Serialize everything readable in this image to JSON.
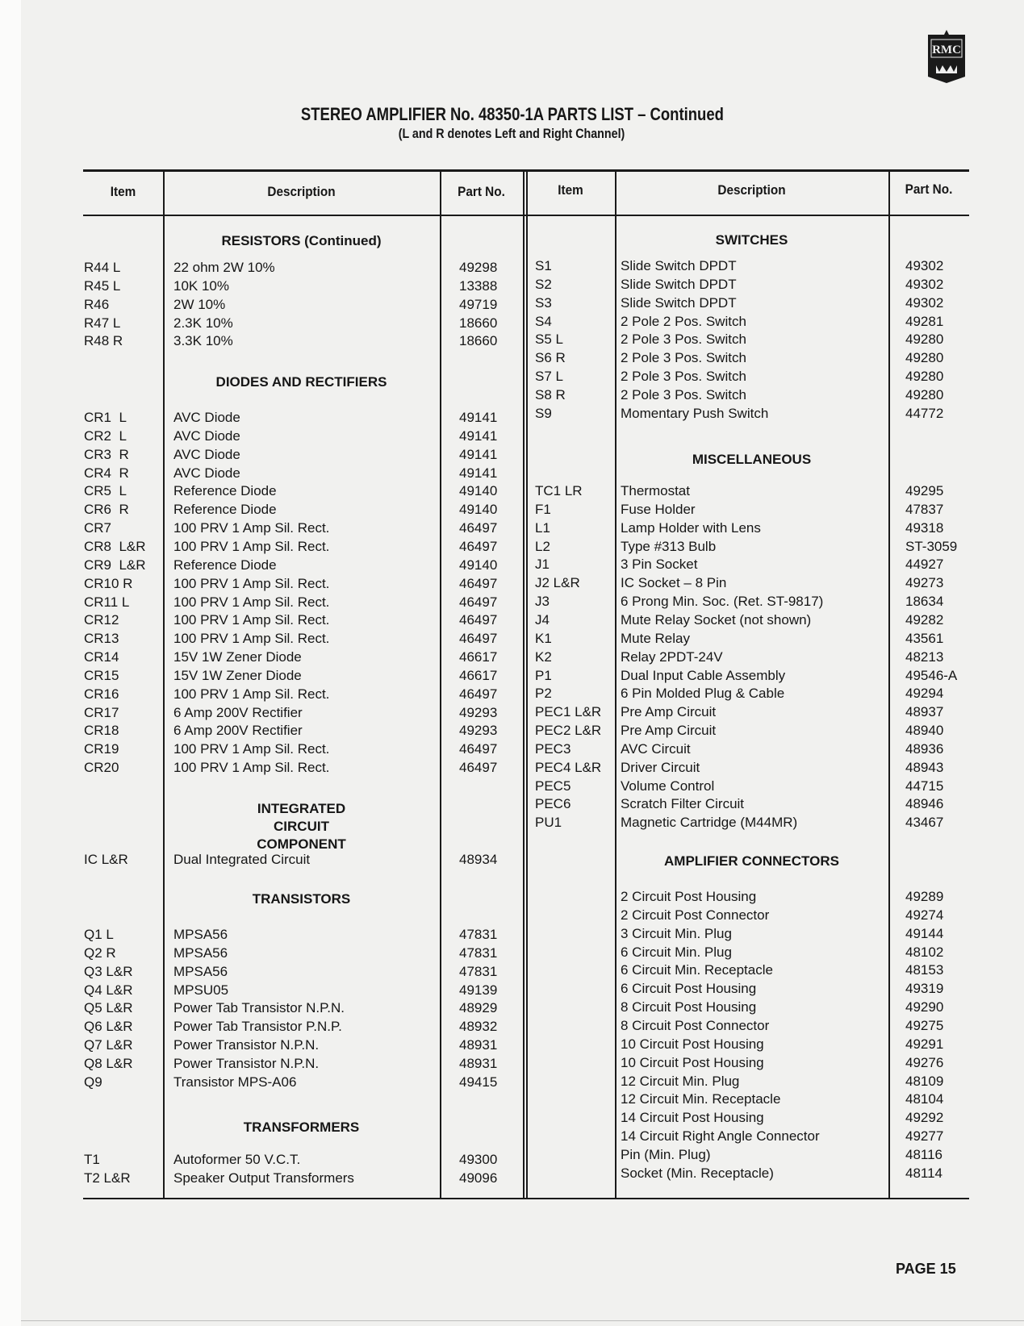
{
  "logo": {
    "text": "RMC",
    "icon": "rmc-crest-logo"
  },
  "title": "STEREO AMPLIFIER No. 48350-1A PARTS LIST – Continued",
  "subtitle": "(L and R denotes Left and Right Channel)",
  "headers": {
    "item": "Item",
    "description": "Description",
    "part_no": "Part No."
  },
  "left_sections": [
    {
      "heading": "RESISTORS (Continued)",
      "rows": [
        [
          "R44 L",
          "22 ohm 2W 10%",
          "49298"
        ],
        [
          "R45 L",
          "10K 10%",
          "13388"
        ],
        [
          "R46",
          "2W 10%",
          "49719"
        ],
        [
          "R47 L",
          "2.3K 10%",
          "18660"
        ],
        [
          "R48 R",
          "3.3K 10%",
          "18660"
        ]
      ]
    },
    {
      "heading": "DIODES AND RECTIFIERS",
      "rows": [
        [
          "CR1  L",
          "AVC Diode",
          "49141"
        ],
        [
          "CR2  L",
          "AVC Diode",
          "49141"
        ],
        [
          "CR3  R",
          "AVC Diode",
          "49141"
        ],
        [
          "CR4  R",
          "AVC Diode",
          "49141"
        ],
        [
          "CR5  L",
          "Reference Diode",
          "49140"
        ],
        [
          "CR6  R",
          "Reference Diode",
          "49140"
        ],
        [
          "CR7",
          "100 PRV 1 Amp Sil. Rect.",
          "46497"
        ],
        [
          "CR8  L&R",
          "100 PRV 1 Amp Sil. Rect.",
          "46497"
        ],
        [
          "CR9  L&R",
          "Reference Diode",
          "49140"
        ],
        [
          "CR10 R",
          "100 PRV 1 Amp Sil. Rect.",
          "46497"
        ],
        [
          "CR11 L",
          "100 PRV 1 Amp Sil. Rect.",
          "46497"
        ],
        [
          "CR12",
          "100 PRV 1 Amp Sil. Rect.",
          "46497"
        ],
        [
          "CR13",
          "100 PRV 1 Amp Sil. Rect.",
          "46497"
        ],
        [
          "CR14",
          "15V 1W Zener Diode",
          "46617"
        ],
        [
          "CR15",
          "15V 1W Zener Diode",
          "46617"
        ],
        [
          "CR16",
          "100 PRV 1 Amp Sil. Rect.",
          "46497"
        ],
        [
          "CR17",
          "6 Amp 200V Rectifier",
          "49293"
        ],
        [
          "CR18",
          "6 Amp 200V Rectifier",
          "49293"
        ],
        [
          "CR19",
          "100 PRV 1 Amp Sil. Rect.",
          "46497"
        ],
        [
          "CR20",
          "100 PRV 1 Amp Sil. Rect.",
          "46497"
        ]
      ]
    },
    {
      "heading": "INTEGRATED CIRCUIT COMPONENT",
      "rows": [
        [
          "IC L&R",
          "Dual Integrated Circuit",
          "48934"
        ]
      ]
    },
    {
      "heading": "TRANSISTORS",
      "rows": [
        [
          "Q1 L",
          "MPSA56",
          "47831"
        ],
        [
          "Q2 R",
          "MPSA56",
          "47831"
        ],
        [
          "Q3 L&R",
          "MPSA56",
          "47831"
        ],
        [
          "Q4 L&R",
          "MPSU05",
          "49139"
        ],
        [
          "Q5 L&R",
          "Power Tab Transistor N.P.N.",
          "48929"
        ],
        [
          "Q6 L&R",
          "Power Tab Transistor P.N.P.",
          "48932"
        ],
        [
          "Q7 L&R",
          "Power Transistor N.P.N.",
          "48931"
        ],
        [
          "Q8 L&R",
          "Power Transistor N.P.N.",
          "48931"
        ],
        [
          "Q9",
          "Transistor MPS-A06",
          "49415"
        ]
      ]
    },
    {
      "heading": "TRANSFORMERS",
      "rows": [
        [
          "T1",
          "Autoformer 50 V.C.T.",
          "49300"
        ],
        [
          "T2 L&R",
          "Speaker Output Transformers",
          "49096"
        ]
      ]
    }
  ],
  "right_sections": [
    {
      "heading": "SWITCHES",
      "rows": [
        [
          "S1",
          "Slide Switch DPDT",
          "49302"
        ],
        [
          "S2",
          "Slide Switch DPDT",
          "49302"
        ],
        [
          "S3",
          "Slide Switch DPDT",
          "49302"
        ],
        [
          "S4",
          "2 Pole 2 Pos. Switch",
          "49281"
        ],
        [
          "S5 L",
          "2 Pole 3 Pos. Switch",
          "49280"
        ],
        [
          "S6 R",
          "2 Pole 3 Pos. Switch",
          "49280"
        ],
        [
          "S7 L",
          "2 Pole 3 Pos. Switch",
          "49280"
        ],
        [
          "S8 R",
          "2 Pole 3 Pos. Switch",
          "49280"
        ],
        [
          "S9",
          "Momentary Push Switch",
          "44772"
        ]
      ]
    },
    {
      "heading": "MISCELLANEOUS",
      "rows": [
        [
          "TC1 LR",
          "Thermostat",
          "49295"
        ],
        [
          "F1",
          "Fuse Holder",
          "47837"
        ],
        [
          "L1",
          "Lamp Holder with Lens",
          "49318"
        ],
        [
          "L2",
          "Type #313 Bulb",
          "ST-3059"
        ],
        [
          "J1",
          "3 Pin Socket",
          "44927"
        ],
        [
          "J2 L&R",
          "IC Socket – 8 Pin",
          "49273"
        ],
        [
          "J3",
          "6 Prong Min. Soc. (Ret. ST-9817)",
          "18634"
        ],
        [
          "J4",
          "Mute Relay Socket (not shown)",
          "49282"
        ],
        [
          "K1",
          "Mute Relay",
          "43561"
        ],
        [
          "K2",
          "Relay 2PDT-24V",
          "48213"
        ],
        [
          "P1",
          "Dual Input Cable Assembly",
          "49546-A"
        ],
        [
          "P2",
          "6 Pin Molded Plug & Cable",
          "49294"
        ],
        [
          "PEC1 L&R",
          "Pre Amp Circuit",
          "48937"
        ],
        [
          "PEC2 L&R",
          "Pre Amp Circuit",
          "48940"
        ],
        [
          "PEC3",
          "AVC Circuit",
          "48936"
        ],
        [
          "PEC4 L&R",
          "Driver Circuit",
          "48943"
        ],
        [
          "PEC5",
          "Volume Control",
          "44715"
        ],
        [
          "PEC6",
          "Scratch Filter Circuit",
          "48946"
        ],
        [
          "PU1",
          "Magnetic Cartridge (M44MR)",
          "43467"
        ]
      ]
    },
    {
      "heading": "AMPLIFIER CONNECTORS",
      "rows": [
        [
          "",
          "2 Circuit Post Housing",
          "49289"
        ],
        [
          "",
          "2 Circuit Post Connector",
          "49274"
        ],
        [
          "",
          "3 Circuit Min. Plug",
          "49144"
        ],
        [
          "",
          "6 Circuit Min. Plug",
          "48102"
        ],
        [
          "",
          "6 Circuit Min. Receptacle",
          "48153"
        ],
        [
          "",
          "6 Circuit Post Housing",
          "49319"
        ],
        [
          "",
          "8 Circuit Post Housing",
          "49290"
        ],
        [
          "",
          "8 Circuit Post Connector",
          "49275"
        ],
        [
          "",
          "10 Circuit Post Housing",
          "49291"
        ],
        [
          "",
          "10 Circuit Post Housing",
          "49276"
        ],
        [
          "",
          "12 Circuit Min. Plug",
          "48109"
        ],
        [
          "",
          "12 Circuit Min. Receptacle",
          "48104"
        ],
        [
          "",
          "14 Circuit Post Housing",
          "49292"
        ],
        [
          "",
          "14 Circuit Right Angle Connector",
          "49277"
        ],
        [
          "",
          "Pin (Min. Plug)",
          "48116"
        ],
        [
          "",
          "Socket (Min. Receptacle)",
          "48114"
        ]
      ]
    }
  ],
  "page_number": "PAGE 15"
}
